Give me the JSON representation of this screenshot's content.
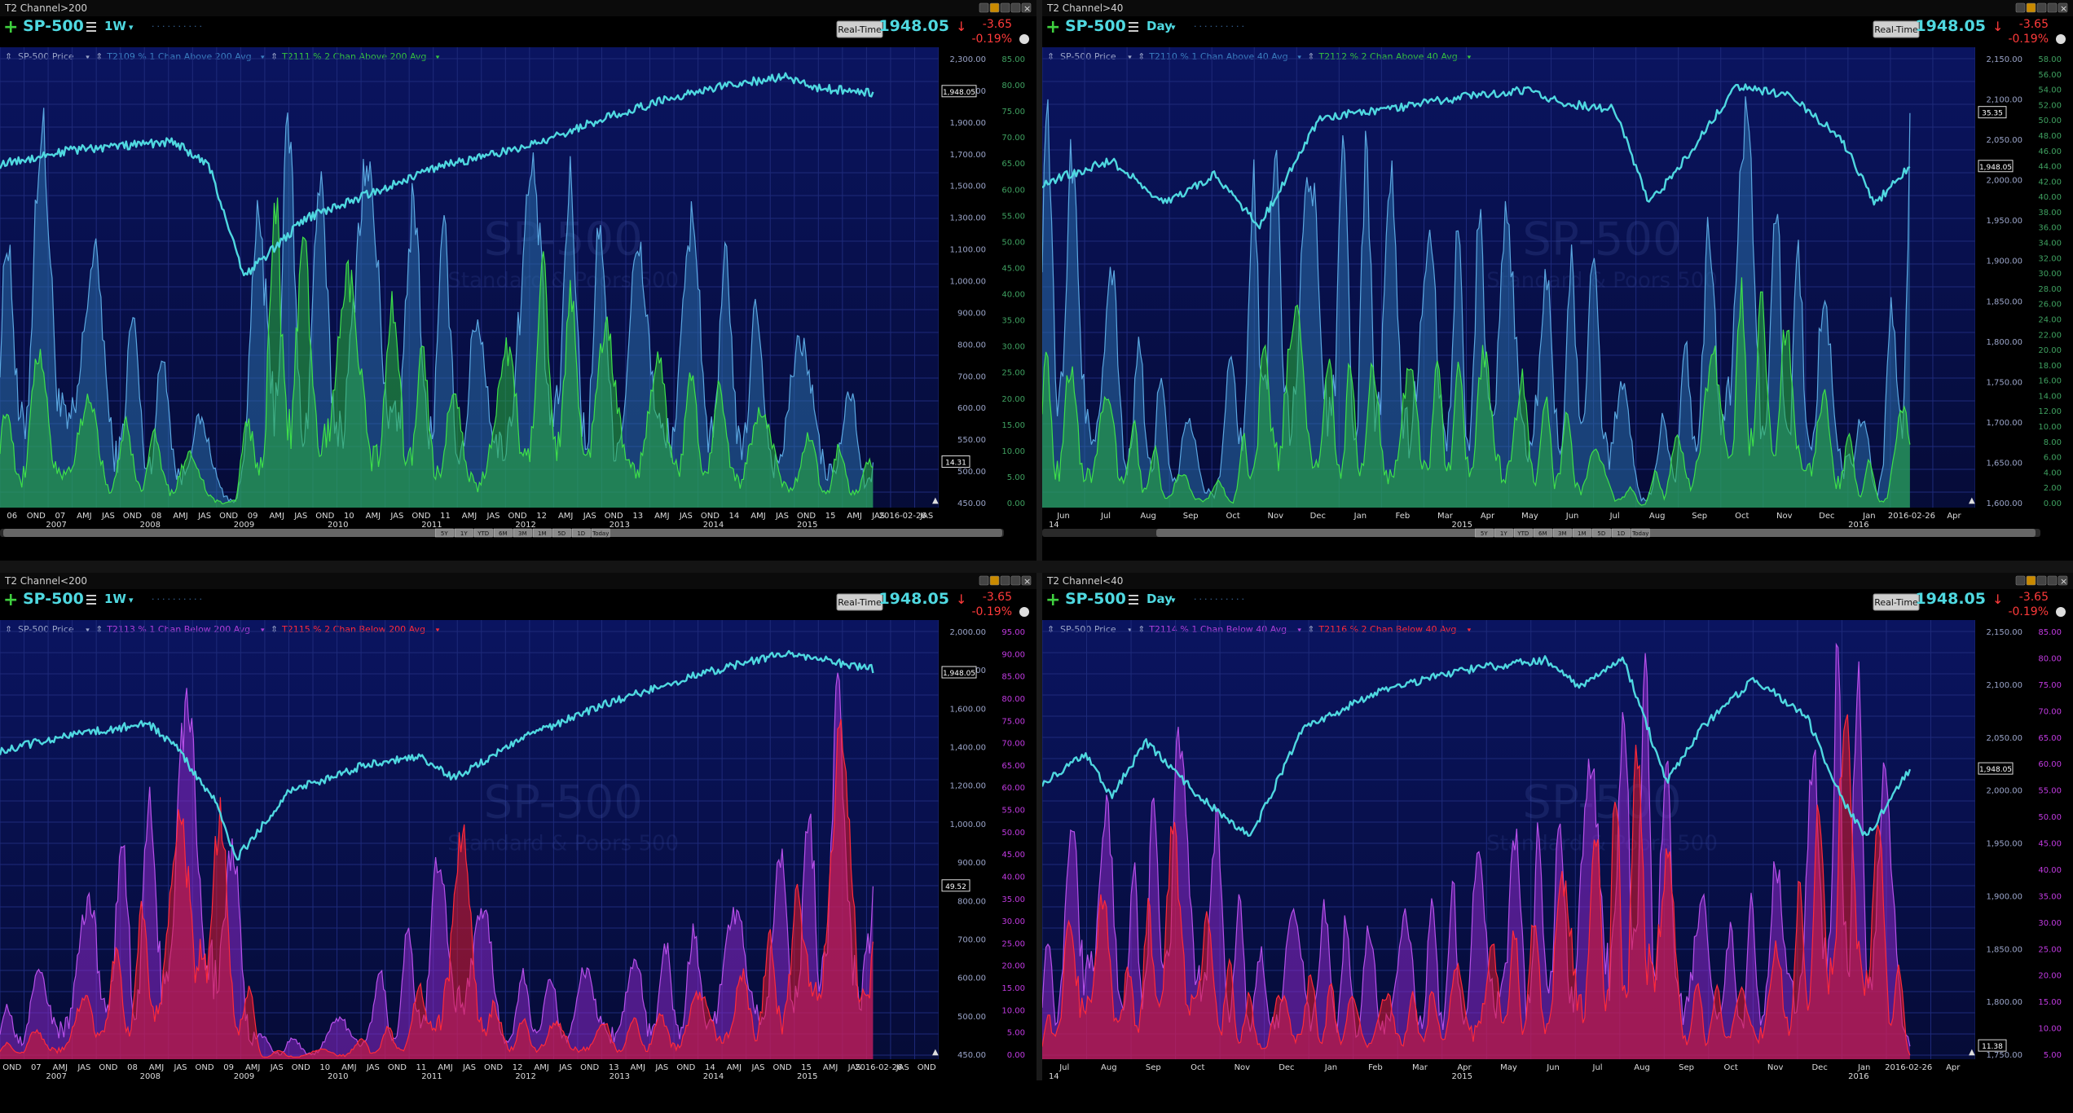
{
  "colors": {
    "bg_top": "#0a1460",
    "bg_bottom": "#050b35",
    "grid": "#1e2a7a",
    "price": "#4fd8e0",
    "green": "#2fcf3a",
    "blue_fill": "#2a6aa0",
    "purple": "#9a2fcf",
    "red": "#e11a2a",
    "axis_text": "#9aa4c8",
    "symbol": "#4fd8e0",
    "neg": "#ff3a3a",
    "title_text": "#d0d0d0"
  },
  "panes": [
    {
      "window_title": "T2 Channel>200",
      "symbol": "SP-500",
      "interval": "1W",
      "realtime": "Real-Time",
      "price": "1948.05",
      "change": "-3.65",
      "change_pct": "-0.19%",
      "legend": [
        {
          "label": "SP-500 Price",
          "color": "#9aa4c8"
        },
        {
          "label": "T2109 % 1 Chan Above 200 Avg",
          "color": "#3b7fc0"
        },
        {
          "label": "T2111 % 2 Chan Above 200 Avg",
          "color": "#35c23f"
        }
      ],
      "watermark": "SP-500",
      "watermark_sub": "Standard & Poors 500",
      "price_ticks": [
        "2,300.00",
        "2,100.00",
        "1,900.00",
        "1,700.00",
        "1,500.00",
        "1,300.00",
        "1,100.00",
        "1,000.00",
        "900.00",
        "800.00",
        "700.00",
        "600.00",
        "550.00",
        "500.00",
        "450.00"
      ],
      "pct_ticks": [
        "85.00",
        "80.00",
        "75.00",
        "70.00",
        "65.00",
        "60.00",
        "55.00",
        "50.00",
        "45.00",
        "40.00",
        "35.00",
        "30.00",
        "25.00",
        "20.00",
        "15.00",
        "10.00",
        "5.00",
        "0.00"
      ],
      "price_label": "1,948.05",
      "ind_label": "14.31",
      "x_ticks": [
        "06",
        "OND",
        "07",
        "AMJ",
        "JAS",
        "OND",
        "08",
        "AMJ",
        "JAS",
        "OND",
        "09",
        "AMJ",
        "JAS",
        "OND",
        "10",
        "AMJ",
        "JAS",
        "OND",
        "11",
        "AMJ",
        "JAS",
        "OND",
        "12",
        "AMJ",
        "JAS",
        "OND",
        "13",
        "AMJ",
        "JAS",
        "OND",
        "14",
        "AMJ",
        "JAS",
        "OND",
        "15",
        "AMJ",
        "JAS",
        "2016-02-26",
        "JAS"
      ],
      "years": [
        "2007",
        "2008",
        "2009",
        "2010",
        "2011",
        "2012",
        "2013",
        "2014",
        "2015"
      ],
      "zoom_bar": [
        "5Y",
        "1Y",
        "YTD",
        "6M",
        "3M",
        "1M",
        "5D",
        "1D",
        "Today"
      ],
      "scheme": "green"
    },
    {
      "window_title": "T2 Channel>40",
      "symbol": "SP-500",
      "interval": "Day",
      "realtime": "Real-Time",
      "price": "1948.05",
      "change": "-3.65",
      "change_pct": "-0.19%",
      "legend": [
        {
          "label": "SP-500 Price",
          "color": "#9aa4c8"
        },
        {
          "label": "T2110 % 1 Chan Above 40 Avg",
          "color": "#3b7fc0"
        },
        {
          "label": "T2112 % 2 Chan Above 40 Avg",
          "color": "#35c23f"
        }
      ],
      "watermark": "SP-500",
      "watermark_sub": "Standard & Poors 500",
      "price_ticks": [
        "2,150.00",
        "2,100.00",
        "2,050.00",
        "2,000.00",
        "1,950.00",
        "1,900.00",
        "1,850.00",
        "1,800.00",
        "1,750.00",
        "1,700.00",
        "1,650.00",
        "1,600.00"
      ],
      "pct_ticks": [
        "58.00",
        "56.00",
        "54.00",
        "52.00",
        "50.00",
        "48.00",
        "46.00",
        "44.00",
        "42.00",
        "40.00",
        "38.00",
        "36.00",
        "34.00",
        "32.00",
        "30.00",
        "28.00",
        "26.00",
        "24.00",
        "22.00",
        "20.00",
        "18.00",
        "16.00",
        "14.00",
        "12.00",
        "10.00",
        "8.00",
        "6.00",
        "4.00",
        "2.00",
        "0.00"
      ],
      "price_label": "1,948.05",
      "ind_label": "35.35",
      "x_ticks": [
        "Jun",
        "Jul",
        "Aug",
        "Sep",
        "Oct",
        "Nov",
        "Dec",
        "Jan",
        "Feb",
        "Mar",
        "Apr",
        "May",
        "Jun",
        "Jul",
        "Aug",
        "Sep",
        "Oct",
        "Nov",
        "Dec",
        "Jan",
        "2016-02-26",
        "Apr"
      ],
      "years": [
        "14",
        "2015",
        "2016"
      ],
      "zoom_bar": [
        "5Y",
        "1Y",
        "YTD",
        "6M",
        "3M",
        "1M",
        "5D",
        "1D",
        "Today"
      ],
      "scheme": "green"
    },
    {
      "window_title": "T2 Channel<200",
      "symbol": "SP-500",
      "interval": "1W",
      "realtime": "Real-Time",
      "price": "1948.05",
      "change": "-3.65",
      "change_pct": "-0.19%",
      "legend": [
        {
          "label": "SP-500 Price",
          "color": "#9aa4c8"
        },
        {
          "label": "T2113 % 1 Chan Below 200 Avg",
          "color": "#b03fd8"
        },
        {
          "label": "T2115 % 2 Chan Below 200 Avg",
          "color": "#ff2a3a"
        }
      ],
      "watermark": "SP-500",
      "watermark_sub": "Standard & Poors 500",
      "price_ticks": [
        "2,000.00",
        "1,800.00",
        "1,600.00",
        "1,400.00",
        "1,200.00",
        "1,000.00",
        "900.00",
        "800.00",
        "700.00",
        "600.00",
        "500.00",
        "450.00"
      ],
      "pct_ticks": [
        "95.00",
        "90.00",
        "85.00",
        "80.00",
        "75.00",
        "70.00",
        "65.00",
        "60.00",
        "55.00",
        "50.00",
        "45.00",
        "40.00",
        "35.00",
        "30.00",
        "25.00",
        "20.00",
        "15.00",
        "10.00",
        "5.00",
        "0.00"
      ],
      "price_label": "1,948.05",
      "ind_label": "49.52",
      "x_ticks": [
        "OND",
        "07",
        "AMJ",
        "JAS",
        "OND",
        "08",
        "AMJ",
        "JAS",
        "OND",
        "09",
        "AMJ",
        "JAS",
        "OND",
        "10",
        "AMJ",
        "JAS",
        "OND",
        "11",
        "AMJ",
        "JAS",
        "OND",
        "12",
        "AMJ",
        "JAS",
        "OND",
        "13",
        "AMJ",
        "JAS",
        "OND",
        "14",
        "AMJ",
        "JAS",
        "OND",
        "15",
        "AMJ",
        "JAS",
        "2016-02-26",
        "JAS",
        "OND"
      ],
      "years": [
        "2007",
        "2008",
        "2009",
        "2010",
        "2011",
        "2012",
        "2013",
        "2014",
        "2015"
      ],
      "zoom_bar": [],
      "scheme": "red"
    },
    {
      "window_title": "T2 Channel<40",
      "symbol": "SP-500",
      "interval": "Day",
      "realtime": "Real-Time",
      "price": "1948.05",
      "change": "-3.65",
      "change_pct": "-0.19%",
      "legend": [
        {
          "label": "SP-500 Price",
          "color": "#9aa4c8"
        },
        {
          "label": "T2114 % 1 Chan Below 40 Avg",
          "color": "#b03fd8"
        },
        {
          "label": "T2116 % 2 Chan Below 40 Avg",
          "color": "#ff2a3a"
        }
      ],
      "watermark": "SP-500",
      "watermark_sub": "Standard & Poors 500",
      "price_ticks": [
        "2,150.00",
        "2,100.00",
        "2,050.00",
        "2,000.00",
        "1,950.00",
        "1,900.00",
        "1,850.00",
        "1,800.00",
        "1,750.00"
      ],
      "pct_ticks": [
        "85.00",
        "80.00",
        "75.00",
        "70.00",
        "65.00",
        "60.00",
        "55.00",
        "50.00",
        "45.00",
        "40.00",
        "35.00",
        "30.00",
        "25.00",
        "20.00",
        "15.00",
        "10.00",
        "5.00"
      ],
      "price_label": "1,948.05",
      "ind_label": "11.38",
      "x_ticks": [
        "Jul",
        "Aug",
        "Sep",
        "Oct",
        "Nov",
        "Dec",
        "Jan",
        "Feb",
        "Mar",
        "Apr",
        "May",
        "Jun",
        "Jul",
        "Aug",
        "Sep",
        "Oct",
        "Nov",
        "Dec",
        "Jan",
        "2016-02-26",
        "Apr"
      ],
      "years": [
        "14",
        "2015",
        "2016"
      ],
      "zoom_bar": [],
      "scheme": "red"
    }
  ],
  "chart_data": [
    {
      "type": "line",
      "title": "T2 Channel>200",
      "series": [
        {
          "name": "SP-500 Price",
          "x": [
            2006,
            2007,
            2007.8,
            2008.5,
            2009.2,
            2010,
            2011,
            2012,
            2013,
            2014,
            2015,
            2015.5,
            2016.15
          ],
          "values": [
            1280,
            1440,
            1480,
            1280,
            720,
            1120,
            1320,
            1400,
            1640,
            1880,
            2060,
            2100,
            1948
          ]
        },
        {
          "name": "T2109 % 1 Chan Above 200 Avg",
          "x": [
            2006,
            2007,
            2008,
            2009,
            2009.6,
            2010,
            2011,
            2012,
            2013,
            2014,
            2015,
            2016.15
          ],
          "values": [
            45,
            70,
            30,
            2,
            85,
            55,
            60,
            50,
            65,
            50,
            40,
            14
          ]
        },
        {
          "name": "T2111 % 2 Chan Above 200 Avg",
          "x": [
            2006,
            2007,
            2008,
            2009,
            2009.6,
            2010,
            2011,
            2012,
            2013,
            2014,
            2015,
            2016.15
          ],
          "values": [
            15,
            25,
            8,
            0,
            55,
            30,
            35,
            20,
            38,
            25,
            18,
            5
          ]
        }
      ]
    },
    {
      "type": "line",
      "title": "T2 Channel>40",
      "series": [
        {
          "name": "SP-500 Price",
          "x": [
            "2014-06",
            "2014-09",
            "2014-10",
            "2014-12",
            "2015-03",
            "2015-05",
            "2015-07",
            "2015-08",
            "2015-11",
            "2016-01",
            "2016-02-26"
          ],
          "values": [
            1950,
            1990,
            1870,
            2070,
            2100,
            2130,
            2120,
            1880,
            2100,
            1850,
            1948
          ]
        },
        {
          "name": "T2110 % 1 Chan Above 40 Avg",
          "x": [
            "2014-06",
            "2014-10",
            "2014-11",
            "2015-03",
            "2015-05",
            "2015-08",
            "2015-10",
            "2015-11",
            "2016-01",
            "2016-02-26"
          ],
          "values": [
            50,
            5,
            45,
            40,
            35,
            2,
            48,
            38,
            3,
            35
          ]
        },
        {
          "name": "T2112 % 2 Chan Above 40 Avg",
          "x": [
            "2014-06",
            "2014-10",
            "2014-11",
            "2015-03",
            "2015-05",
            "2015-08",
            "2015-10",
            "2015-11",
            "2016-01",
            "2016-02-26"
          ],
          "values": [
            20,
            2,
            25,
            18,
            15,
            1,
            25,
            15,
            1,
            14
          ]
        }
      ]
    },
    {
      "type": "line",
      "title": "T2 Channel<200",
      "series": [
        {
          "name": "SP-500 Price",
          "x": [
            2006,
            2007,
            2007.8,
            2008.5,
            2009.2,
            2010,
            2011,
            2012,
            2013,
            2014,
            2015,
            2015.5,
            2016.15
          ],
          "values": [
            1280,
            1440,
            1480,
            1280,
            720,
            1120,
            1320,
            1400,
            1640,
            1880,
            2060,
            2100,
            1948
          ]
        },
        {
          "name": "T2113 % 1 Chan Below 200 Avg",
          "x": [
            2006,
            2007,
            2008,
            2008.9,
            2009.4,
            2010,
            2011.6,
            2012,
            2013,
            2014,
            2015,
            2016.15
          ],
          "values": [
            5,
            20,
            45,
            95,
            20,
            5,
            55,
            10,
            15,
            20,
            30,
            49
          ]
        },
        {
          "name": "T2115 % 2 Chan Below 200 Avg",
          "x": [
            2006,
            2007,
            2008,
            2008.9,
            2009.4,
            2010,
            2011.6,
            2012,
            2013,
            2014,
            2015,
            2016.15
          ],
          "values": [
            1,
            5,
            25,
            90,
            5,
            2,
            50,
            3,
            5,
            10,
            20,
            45
          ]
        }
      ]
    },
    {
      "type": "line",
      "title": "T2 Channel<40",
      "series": [
        {
          "name": "SP-500 Price",
          "x": [
            "2014-07",
            "2014-09",
            "2014-10",
            "2014-12",
            "2015-03",
            "2015-05",
            "2015-07",
            "2015-08",
            "2015-11",
            "2016-01",
            "2016-02-26"
          ],
          "values": [
            1950,
            1990,
            1870,
            2070,
            2100,
            2130,
            2120,
            1880,
            2100,
            1850,
            1948
          ]
        },
        {
          "name": "T2114 % 1 Chan Below 40 Avg",
          "x": [
            "2014-07",
            "2014-08",
            "2014-10",
            "2014-12",
            "2015-03",
            "2015-06",
            "2015-08",
            "2015-10",
            "2016-01",
            "2016-02-26"
          ],
          "values": [
            20,
            70,
            72,
            45,
            40,
            50,
            85,
            35,
            85,
            11
          ]
        },
        {
          "name": "T2116 % 2 Chan Below 40 Avg",
          "x": [
            "2014-07",
            "2014-08",
            "2014-10",
            "2014-12",
            "2015-03",
            "2015-06",
            "2015-08",
            "2015-10",
            "2016-01",
            "2016-02-26"
          ],
          "values": [
            5,
            40,
            48,
            20,
            15,
            25,
            65,
            15,
            70,
            4
          ]
        }
      ]
    }
  ]
}
